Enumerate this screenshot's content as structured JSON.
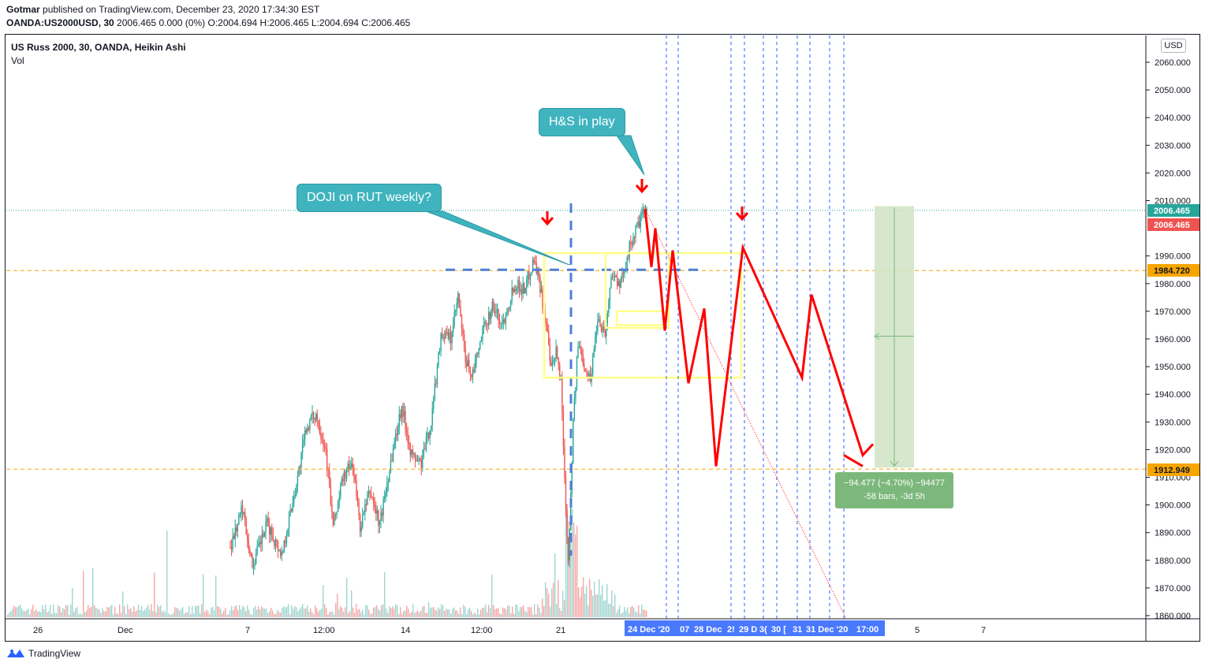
{
  "header": {
    "author": "Gotmar",
    "published_text": " published on TradingView.com, December 23, 2020 17:34:30 EST",
    "symbol_line": "OANDA:US2000USD, 30",
    "ohlc_text": "  2006.465 0.000 (0%) O:2004.694 H:2006.465 L:2004.694 C:2006.465"
  },
  "legend": {
    "title": "US Russ 2000, 30, OANDA, Heikin Ashi",
    "volume_label": "Vol"
  },
  "currency_badge": "USD",
  "annotations": {
    "doji_callout": "DOJI on RUT weekly?",
    "hs_callout": "H&S in play",
    "measure_line1": "−94.477 (−4.70%) −94477",
    "measure_line2": "-58 bars, -3d 5h"
  },
  "footer": {
    "brand": "TradingView"
  },
  "colors": {
    "up": "#26a69a",
    "down": "#ef5350",
    "projection": "#ff0000",
    "box": "#ffff88",
    "level": "#f7a600",
    "neckline": "#4f7fd8",
    "vline": "#2962ff",
    "measure_zone": "#cfe3c4",
    "price_green": "#26a69a",
    "price_red": "#ef5350",
    "price_orange": "#f7a600"
  },
  "chart_data": {
    "type": "candlestick",
    "style": "Heikin Ashi",
    "symbol": "US Russ 2000",
    "interval": "30",
    "exchange": "OANDA",
    "currency": "USD",
    "ylim": [
      1858,
      2066
    ],
    "y_ticks": [
      2060,
      2050,
      2040,
      2030,
      2020,
      2010,
      1990,
      1980,
      1970,
      1960,
      1950,
      1940,
      1930,
      1920,
      1910,
      1900,
      1890,
      1880,
      1870,
      1860
    ],
    "x_tick_labels": [
      "26",
      "Dec",
      "7",
      "12:00",
      "14",
      "12:00",
      "21",
      "5",
      "7"
    ],
    "x_highlight_labels": [
      "24 Dec '20",
      "07",
      "28 Dec",
      "2!",
      "29 D",
      "3(",
      "30 [",
      "31",
      "31 Dec '20",
      "17:00"
    ],
    "price_labels": [
      {
        "value": 2006.465,
        "text": "2006.465",
        "kind": "last-green"
      },
      {
        "value": 2006.465,
        "text": "2006.465",
        "kind": "last-red"
      },
      {
        "value": 1984.72,
        "text": "1984.720",
        "kind": "level"
      },
      {
        "value": 1912.949,
        "text": "1912.949",
        "kind": "level"
      }
    ],
    "horizontal_levels": [
      1984.72,
      1912.949
    ],
    "neckline_level": 1985,
    "price_path": [
      {
        "t": 0,
        "p": 1885
      },
      {
        "t": 10,
        "p": 1899
      },
      {
        "t": 18,
        "p": 1878
      },
      {
        "t": 30,
        "p": 1893
      },
      {
        "t": 42,
        "p": 1882
      },
      {
        "t": 55,
        "p": 1910
      },
      {
        "t": 62,
        "p": 1928
      },
      {
        "t": 70,
        "p": 1933
      },
      {
        "t": 78,
        "p": 1920
      },
      {
        "t": 84,
        "p": 1892
      },
      {
        "t": 92,
        "p": 1910
      },
      {
        "t": 100,
        "p": 1915
      },
      {
        "t": 106,
        "p": 1892
      },
      {
        "t": 114,
        "p": 1905
      },
      {
        "t": 122,
        "p": 1893
      },
      {
        "t": 132,
        "p": 1918
      },
      {
        "t": 140,
        "p": 1936
      },
      {
        "t": 148,
        "p": 1918
      },
      {
        "t": 156,
        "p": 1915
      },
      {
        "t": 164,
        "p": 1930
      },
      {
        "t": 172,
        "p": 1962
      },
      {
        "t": 180,
        "p": 1960
      },
      {
        "t": 186,
        "p": 1975
      },
      {
        "t": 192,
        "p": 1952
      },
      {
        "t": 198,
        "p": 1947
      },
      {
        "t": 206,
        "p": 1962
      },
      {
        "t": 214,
        "p": 1972
      },
      {
        "t": 222,
        "p": 1965
      },
      {
        "t": 232,
        "p": 1980
      },
      {
        "t": 240,
        "p": 1978
      },
      {
        "t": 248,
        "p": 1989
      },
      {
        "t": 252,
        "p": 1982
      },
      {
        "t": 258,
        "p": 1965
      },
      {
        "t": 262,
        "p": 1948
      },
      {
        "t": 266,
        "p": 1955
      },
      {
        "t": 270,
        "p": 1945
      },
      {
        "t": 273,
        "p": 1910
      },
      {
        "t": 276,
        "p": 1880
      },
      {
        "t": 280,
        "p": 1930
      },
      {
        "t": 284,
        "p": 1958
      },
      {
        "t": 290,
        "p": 1950
      },
      {
        "t": 294,
        "p": 1945
      },
      {
        "t": 300,
        "p": 1968
      },
      {
        "t": 306,
        "p": 1962
      },
      {
        "t": 312,
        "p": 1985
      },
      {
        "t": 318,
        "p": 1978
      },
      {
        "t": 324,
        "p": 1990
      },
      {
        "t": 330,
        "p": 1998
      },
      {
        "t": 336,
        "p": 2004
      },
      {
        "t": 340,
        "p": 2006.5
      }
    ],
    "projection_path": [
      {
        "x": "24 Dec '20",
        "p": 2007
      },
      {
        "x": "",
        "p": 1986
      },
      {
        "x": "",
        "p": 2000
      },
      {
        "x": "",
        "p": 1963
      },
      {
        "x": "",
        "p": 1992
      },
      {
        "x": "",
        "p": 1944
      },
      {
        "x": "",
        "p": 1971
      },
      {
        "x": "",
        "p": 1914
      },
      {
        "x": "29 D",
        "p": 1993
      },
      {
        "x": "",
        "p": 1946
      },
      {
        "x": "31",
        "p": 1976
      },
      {
        "x": "",
        "p": 1918
      },
      {
        "x": "",
        "p": 1922
      }
    ],
    "measure": {
      "from": 2008,
      "to": 1913.5,
      "change": "−94.477 (−4.70%)",
      "bars": -58,
      "duration": "-3d 5h"
    },
    "projection_boxes": [
      {
        "p_top": 1991,
        "p_bottom": 1946
      },
      {
        "p_top": 1991,
        "p_bottom": 1964
      },
      {
        "p_top": 1970,
        "p_bottom": 1965
      }
    ],
    "down_markers": [
      "first shoulder",
      "head",
      "right shoulder"
    ],
    "grid": false,
    "legend_position": "top-left"
  }
}
